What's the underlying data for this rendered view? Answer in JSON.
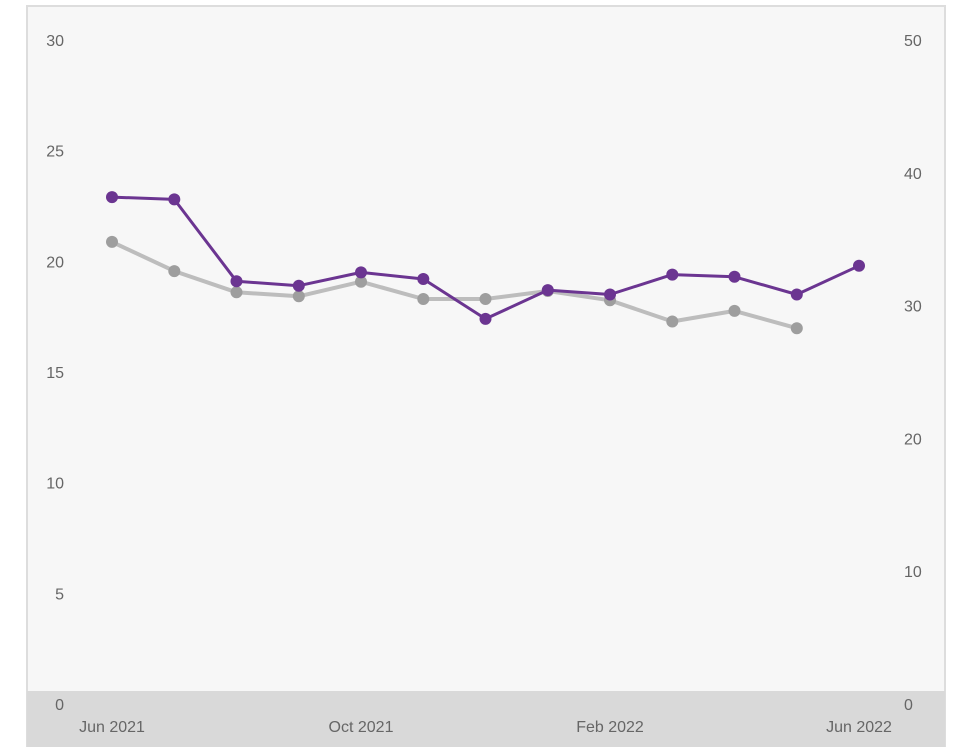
{
  "chart_data": {
    "type": "line",
    "title": "",
    "xlabel": "",
    "ylabel": "",
    "x": [
      "2021-06",
      "2021-07",
      "2021-08",
      "2021-09",
      "2021-10",
      "2021-11",
      "2021-12",
      "2022-01",
      "2022-02",
      "2022-03",
      "2022-04",
      "2022-05",
      "2022-06"
    ],
    "x_tick_labels": [
      {
        "x": "2021-06",
        "label": "Jun 2021"
      },
      {
        "x": "2021-10",
        "label": "Oct 2021"
      },
      {
        "x": "2022-02",
        "label": "Feb 2022"
      },
      {
        "x": "2022-06",
        "label": "Jun 2022"
      }
    ],
    "y_left": {
      "ylim": [
        0,
        30
      ],
      "ticks": [
        "0",
        "5",
        "10",
        "15",
        "20",
        "25",
        "30"
      ]
    },
    "y_right": {
      "ylim": [
        0,
        50
      ],
      "ticks": [
        "0",
        "10",
        "20",
        "30",
        "40",
        "50"
      ]
    },
    "series": [
      {
        "axis": "left",
        "color": "#6b3591",
        "values": [
          22.9,
          22.8,
          19.1,
          18.9,
          19.5,
          19.2,
          17.4,
          18.7,
          18.5,
          19.4,
          19.3,
          18.5,
          19.8
        ]
      },
      {
        "axis": "right",
        "color": "#bdbdbd",
        "marker_color": "#9e9e9e",
        "values": [
          34.8,
          32.6,
          31.0,
          30.7,
          31.8,
          30.5,
          30.5,
          31.1,
          30.4,
          28.8,
          29.6,
          28.3,
          null
        ]
      }
    ],
    "grid": false,
    "legend": "none",
    "colors": {
      "plot_bg": "#f7f7f7",
      "axis_band": "#d9d9d9",
      "frame": "#dddddd",
      "tick_text": "#666666"
    }
  }
}
